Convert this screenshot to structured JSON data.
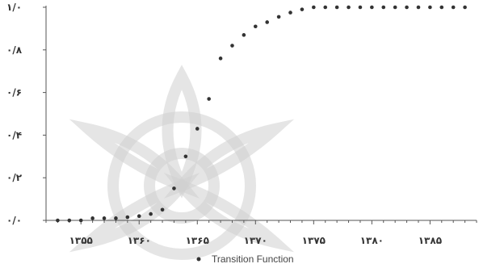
{
  "chart_data": {
    "type": "scatter",
    "title": "",
    "xlabel": "",
    "ylabel": "",
    "xlim": [
      1352,
      1389
    ],
    "ylim": [
      0,
      1
    ],
    "x_ticks": [
      1355,
      1360,
      1365,
      1370,
      1375,
      1380,
      1385
    ],
    "x_tick_labels": [
      "۱۳۵۵",
      "۱۳۶۰",
      "۱۳۶۵",
      "۱۳۷۰",
      "۱۳۷۵",
      "۱۳۸۰",
      "۱۳۸۵"
    ],
    "y_ticks": [
      0,
      0.2,
      0.4,
      0.6,
      0.8,
      1.0
    ],
    "y_tick_labels": [
      "۰/۰",
      "۰/۲",
      "۰/۴",
      "۰/۶",
      "۰/۸",
      "۱/۰"
    ],
    "grid": false,
    "legend_position": "bottom-center",
    "series": [
      {
        "name": "Transition Function",
        "color": "#333333",
        "x": [
          1353,
          1354,
          1355,
          1356,
          1357,
          1358,
          1359,
          1360,
          1361,
          1362,
          1363,
          1364,
          1365,
          1366,
          1367,
          1368,
          1369,
          1370,
          1371,
          1372,
          1373,
          1374,
          1375,
          1376,
          1377,
          1378,
          1379,
          1380,
          1381,
          1382,
          1383,
          1384,
          1385,
          1386,
          1387,
          1388
        ],
        "y": [
          0.0,
          0.0,
          0.0,
          0.01,
          0.01,
          0.01,
          0.015,
          0.02,
          0.03,
          0.05,
          0.15,
          0.3,
          0.43,
          0.57,
          0.76,
          0.82,
          0.87,
          0.91,
          0.93,
          0.955,
          0.975,
          0.99,
          1.0,
          1.0,
          1.0,
          1.0,
          1.0,
          1.0,
          1.0,
          1.0,
          1.0,
          1.0,
          1.0,
          1.0,
          1.0,
          1.0
        ]
      }
    ]
  }
}
